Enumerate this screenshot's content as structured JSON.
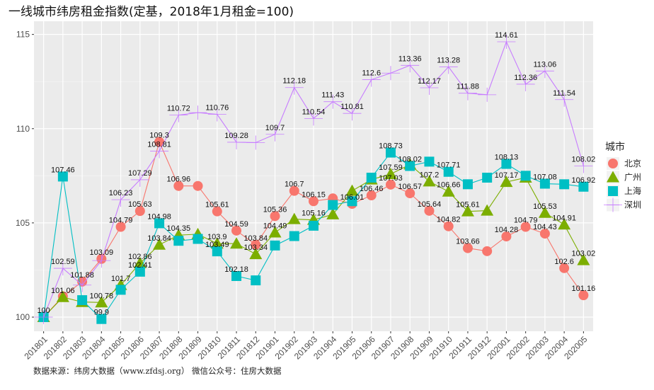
{
  "title": "一线城市纬房租金指数(定基，2018年1月租金=100)",
  "caption": "数据来源：纬房大数据（www.zfdsj.org）  微信公众号：住房大数据",
  "chart_data": {
    "type": "line",
    "title": "一线城市纬房租金指数(定基，2018年1月租金=100)",
    "xlabel": "",
    "ylabel": "",
    "ylim": [
      99.25,
      115.7
    ],
    "yticks": [
      100,
      105,
      110,
      115
    ],
    "grid": true,
    "legend_title": "城市",
    "legend_position": "right",
    "categories": [
      "201801",
      "201802",
      "201803",
      "201804",
      "201805",
      "201806",
      "201807",
      "201808",
      "201809",
      "201810",
      "201811",
      "201812",
      "201901",
      "201902",
      "201903",
      "201904",
      "201905",
      "201906",
      "201907",
      "201908",
      "201909",
      "201910",
      "201911",
      "201912",
      "202001",
      "202002",
      "202003",
      "202004",
      "202005"
    ],
    "series": [
      {
        "name": "北京",
        "color": "#F8766D",
        "marker": "circle",
        "values": [
          100,
          101.1,
          101.88,
          103.09,
          104.79,
          105.63,
          109.3,
          106.96,
          106.96,
          105.61,
          104.59,
          103.84,
          105.36,
          106.7,
          106.15,
          106.3,
          106.01,
          106.46,
          107.03,
          106.57,
          105.64,
          104.82,
          103.66,
          103.5,
          104.28,
          104.79,
          104.43,
          102.6,
          101.16
        ],
        "labels": [
          "100",
          null,
          "101.88",
          "103.09",
          "104.79",
          "105.63",
          "109.3",
          "106.96",
          null,
          "105.61",
          "104.59",
          "103.84",
          "105.36",
          "106.7",
          "106.15",
          null,
          "106.01",
          "106.46",
          "107.03",
          "106.57",
          "105.64",
          "104.82",
          "103.66",
          null,
          "104.28",
          "104.79",
          "104.43",
          "102.6",
          "101.16"
        ]
      },
      {
        "name": "广州",
        "color": "#7CAE00",
        "marker": "triangle",
        "values": [
          100,
          101.06,
          100.8,
          100.78,
          101.7,
          102.86,
          103.84,
          104.35,
          104.4,
          103.9,
          103.9,
          103.34,
          104.49,
          105.2,
          105.16,
          105.45,
          106.7,
          107.3,
          107.59,
          108.1,
          107.2,
          106.66,
          105.61,
          105.65,
          107.17,
          107.4,
          105.53,
          104.91,
          103.02
        ],
        "labels": [
          null,
          "101.06",
          null,
          "100.78",
          "101.7",
          "102.86",
          "103.84",
          "104.35",
          null,
          "103.9",
          null,
          "103.34",
          "104.49",
          null,
          "105.16",
          null,
          null,
          null,
          "107.59",
          null,
          "107.2",
          "106.66",
          "105.61",
          null,
          "107.17",
          null,
          "105.53",
          "104.91",
          "103.02"
        ]
      },
      {
        "name": "上海",
        "color": "#00BFC4",
        "marker": "square",
        "values": [
          100,
          107.46,
          100.9,
          99.9,
          101.45,
          102.41,
          104.98,
          104.05,
          104.15,
          103.49,
          102.18,
          101.95,
          103.8,
          104.3,
          104.85,
          105.95,
          106.15,
          107.4,
          108.73,
          108.02,
          108.25,
          107.71,
          107.05,
          107.4,
          108.13,
          107.5,
          107.08,
          107.05,
          106.92
        ],
        "labels": [
          null,
          "107.46",
          null,
          "99.9",
          null,
          "102.41",
          "104.98",
          null,
          null,
          "103.49",
          "102.18",
          null,
          null,
          null,
          null,
          null,
          null,
          null,
          "108.73",
          "108.02",
          null,
          "107.71",
          null,
          null,
          "108.13",
          null,
          "107.08",
          null,
          "106.92"
        ]
      },
      {
        "name": "深圳",
        "color": "#C77CFF",
        "marker": "cross",
        "values": [
          100,
          102.59,
          101.7,
          103.0,
          106.23,
          107.29,
          108.81,
          110.72,
          110.85,
          110.76,
          109.28,
          109.26,
          109.7,
          112.18,
          110.54,
          111.43,
          110.81,
          112.6,
          112.95,
          113.36,
          112.17,
          113.28,
          111.88,
          111.8,
          114.61,
          112.36,
          113.06,
          111.54,
          108.02
        ],
        "labels": [
          null,
          "102.59",
          null,
          null,
          "106.23",
          "107.29",
          "108.81",
          "110.72",
          null,
          "110.76",
          "109.28",
          null,
          "109.7",
          "112.18",
          "110.54",
          "111.43",
          "110.81",
          "112.6",
          null,
          "113.36",
          "112.17",
          "113.28",
          "111.88",
          null,
          "114.61",
          "112.36",
          "113.06",
          "111.54",
          "108.02"
        ]
      }
    ]
  }
}
